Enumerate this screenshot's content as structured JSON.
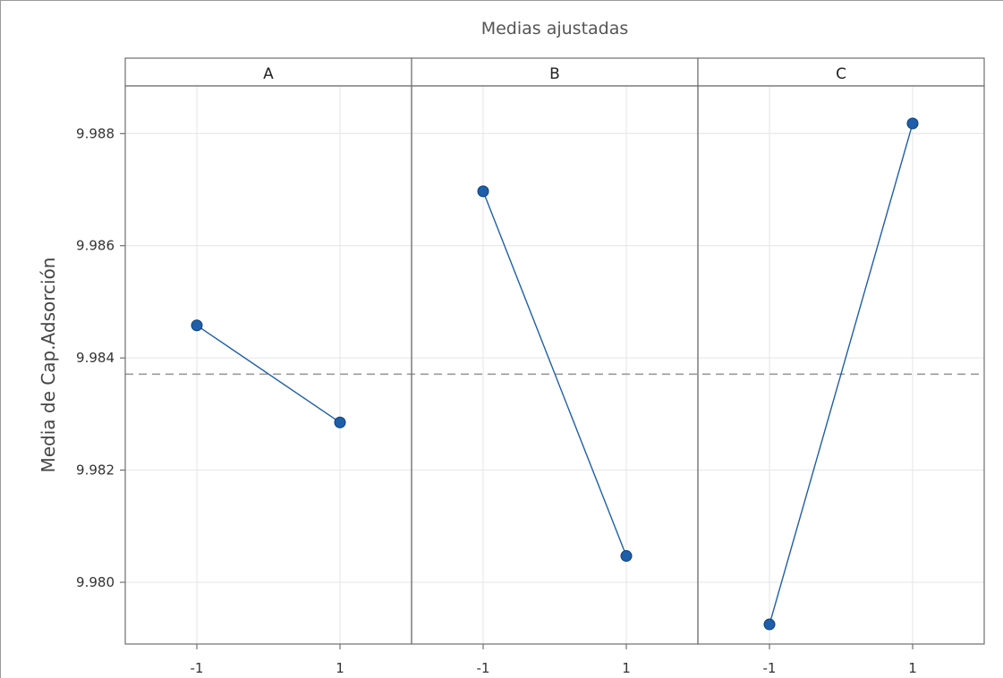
{
  "chart_data": {
    "type": "line",
    "title": "Medias ajustadas",
    "ylabel": "Media de Cap.Adsorción",
    "ylim": [
      9.9789,
      9.98885
    ],
    "yticks": [
      9.98,
      9.982,
      9.984,
      9.986,
      9.988
    ],
    "ytick_labels": [
      "9.980",
      "9.982",
      "9.984",
      "9.986",
      "9.988"
    ],
    "reference_line": 9.98371,
    "grid": true,
    "color": "#1f5fa9",
    "panels": [
      {
        "label": "A",
        "categories": [
          "-1",
          "1"
        ],
        "values": [
          9.98458,
          9.98285
        ]
      },
      {
        "label": "B",
        "categories": [
          "-1",
          "1"
        ],
        "values": [
          9.98697,
          9.98047
        ]
      },
      {
        "label": "C",
        "categories": [
          "-1",
          "1"
        ],
        "values": [
          9.97925,
          9.98818
        ]
      }
    ]
  }
}
